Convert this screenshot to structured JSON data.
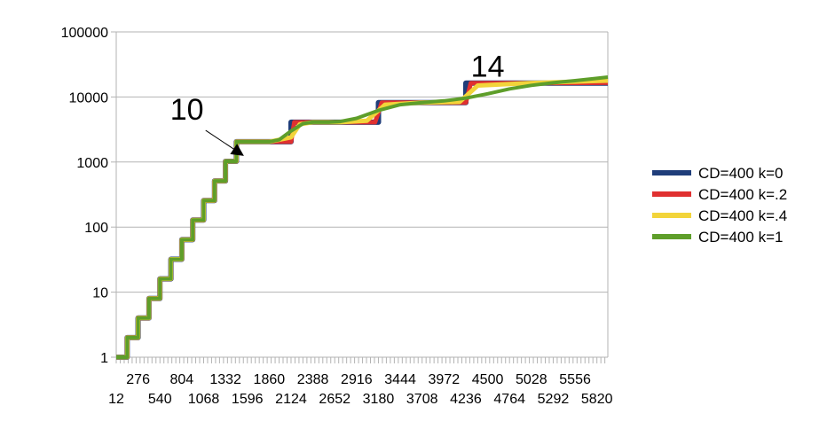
{
  "chart_data": {
    "type": "line",
    "title": "",
    "xlabel": "",
    "ylabel": "",
    "y_scale": "log",
    "ylim": [
      1,
      100000
    ],
    "xlim": [
      12,
      5952
    ],
    "grid": true,
    "legend_position": "right",
    "y_ticks": [
      {
        "value": 1,
        "label": "1"
      },
      {
        "value": 10,
        "label": "10"
      },
      {
        "value": 100,
        "label": "100"
      },
      {
        "value": 1000,
        "label": "1000"
      },
      {
        "value": 10000,
        "label": "10000"
      },
      {
        "value": 100000,
        "label": "100000"
      }
    ],
    "x_ticks_upper": [
      "276",
      "804",
      "1332",
      "1860",
      "2388",
      "2916",
      "3444",
      "3972",
      "4500",
      "5028",
      "5556"
    ],
    "x_ticks_lower": [
      "12",
      "540",
      "1068",
      "1596",
      "2124",
      "2652",
      "3180",
      "3708",
      "4236",
      "4764",
      "5292",
      "5820"
    ],
    "annotations": [
      {
        "text": "10",
        "x": 1596,
        "y": 1024,
        "arrow": true
      },
      {
        "text": "14",
        "x": 4500,
        "y": 30000,
        "arrow": false
      }
    ],
    "series": [
      {
        "name": "CD=400 k=0",
        "color": "#1f3d7a",
        "points": [
          [
            12,
            1
          ],
          [
            144,
            1
          ],
          [
            144,
            2
          ],
          [
            276,
            2
          ],
          [
            276,
            4
          ],
          [
            408,
            4
          ],
          [
            408,
            8
          ],
          [
            540,
            8
          ],
          [
            540,
            16
          ],
          [
            672,
            16
          ],
          [
            672,
            32
          ],
          [
            804,
            32
          ],
          [
            804,
            64
          ],
          [
            936,
            64
          ],
          [
            936,
            128
          ],
          [
            1068,
            128
          ],
          [
            1068,
            256
          ],
          [
            1200,
            256
          ],
          [
            1200,
            512
          ],
          [
            1332,
            512
          ],
          [
            1332,
            1024
          ],
          [
            1464,
            1024
          ],
          [
            1464,
            2048
          ],
          [
            1596,
            2048
          ],
          [
            1596,
            2048
          ],
          [
            1860,
            2048
          ],
          [
            2124,
            2048
          ],
          [
            2124,
            4096
          ],
          [
            2388,
            4096
          ],
          [
            2600,
            4096
          ],
          [
            2720,
            4096
          ],
          [
            3180,
            4096
          ],
          [
            3180,
            8192
          ],
          [
            3708,
            8192
          ],
          [
            4236,
            8192
          ],
          [
            4236,
            16384
          ],
          [
            5000,
            16384
          ],
          [
            5952,
            16384
          ]
        ]
      },
      {
        "name": "CD=400 k=.2",
        "color": "#e03030",
        "points": [
          [
            12,
            1
          ],
          [
            144,
            1
          ],
          [
            144,
            2
          ],
          [
            276,
            2
          ],
          [
            276,
            4
          ],
          [
            408,
            4
          ],
          [
            408,
            8
          ],
          [
            540,
            8
          ],
          [
            540,
            16
          ],
          [
            672,
            16
          ],
          [
            672,
            32
          ],
          [
            804,
            32
          ],
          [
            804,
            64
          ],
          [
            936,
            64
          ],
          [
            936,
            128
          ],
          [
            1068,
            128
          ],
          [
            1068,
            256
          ],
          [
            1200,
            256
          ],
          [
            1200,
            512
          ],
          [
            1332,
            512
          ],
          [
            1332,
            1024
          ],
          [
            1464,
            1024
          ],
          [
            1464,
            2048
          ],
          [
            1596,
            2048
          ],
          [
            1860,
            2048
          ],
          [
            2124,
            2048
          ],
          [
            2164,
            4096
          ],
          [
            2388,
            4096
          ],
          [
            2720,
            4096
          ],
          [
            3140,
            4096
          ],
          [
            3220,
            8192
          ],
          [
            3708,
            8192
          ],
          [
            4236,
            8192
          ],
          [
            4296,
            16384
          ],
          [
            5000,
            16384
          ],
          [
            5952,
            16500
          ]
        ]
      },
      {
        "name": "CD=400 k=.4",
        "color": "#f2d43a",
        "points": [
          [
            12,
            1
          ],
          [
            144,
            1
          ],
          [
            144,
            2
          ],
          [
            276,
            2
          ],
          [
            276,
            4
          ],
          [
            408,
            4
          ],
          [
            408,
            8
          ],
          [
            540,
            8
          ],
          [
            540,
            16
          ],
          [
            672,
            16
          ],
          [
            672,
            32
          ],
          [
            804,
            32
          ],
          [
            804,
            64
          ],
          [
            936,
            64
          ],
          [
            936,
            128
          ],
          [
            1068,
            128
          ],
          [
            1068,
            256
          ],
          [
            1200,
            256
          ],
          [
            1200,
            512
          ],
          [
            1332,
            512
          ],
          [
            1332,
            1024
          ],
          [
            1464,
            1024
          ],
          [
            1464,
            2048
          ],
          [
            1596,
            2048
          ],
          [
            1860,
            2048
          ],
          [
            2124,
            2400
          ],
          [
            2230,
            3800
          ],
          [
            2388,
            4096
          ],
          [
            2720,
            4096
          ],
          [
            3040,
            4300
          ],
          [
            3260,
            7600
          ],
          [
            3708,
            8192
          ],
          [
            4160,
            8400
          ],
          [
            4380,
            15000
          ],
          [
            5000,
            16384
          ],
          [
            5952,
            17800
          ]
        ]
      },
      {
        "name": "CD=400 k=1",
        "color": "#5e9e2a",
        "points": [
          [
            12,
            1
          ],
          [
            144,
            1
          ],
          [
            144,
            2
          ],
          [
            276,
            2
          ],
          [
            276,
            4
          ],
          [
            408,
            4
          ],
          [
            408,
            8
          ],
          [
            540,
            8
          ],
          [
            540,
            16
          ],
          [
            672,
            16
          ],
          [
            672,
            32
          ],
          [
            804,
            32
          ],
          [
            804,
            64
          ],
          [
            936,
            64
          ],
          [
            936,
            128
          ],
          [
            1068,
            128
          ],
          [
            1068,
            256
          ],
          [
            1200,
            256
          ],
          [
            1200,
            512
          ],
          [
            1332,
            512
          ],
          [
            1332,
            1024
          ],
          [
            1464,
            1024
          ],
          [
            1464,
            2048
          ],
          [
            1596,
            2048
          ],
          [
            1860,
            2048
          ],
          [
            1980,
            2200
          ],
          [
            2124,
            3000
          ],
          [
            2270,
            3900
          ],
          [
            2388,
            4096
          ],
          [
            2580,
            4096
          ],
          [
            2720,
            4200
          ],
          [
            2916,
            4700
          ],
          [
            3180,
            6200
          ],
          [
            3444,
            7600
          ],
          [
            3708,
            8200
          ],
          [
            3972,
            8700
          ],
          [
            4236,
            9600
          ],
          [
            4500,
            11200
          ],
          [
            4764,
            13300
          ],
          [
            5028,
            15100
          ],
          [
            5292,
            16500
          ],
          [
            5556,
            17800
          ],
          [
            5820,
            19300
          ],
          [
            5952,
            20200
          ]
        ]
      }
    ]
  }
}
